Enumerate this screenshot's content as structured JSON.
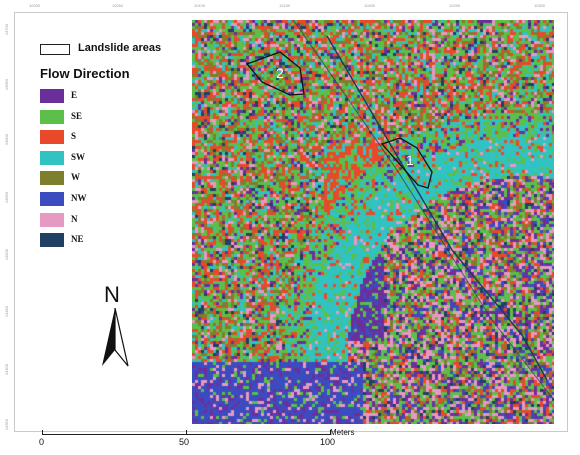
{
  "legend": {
    "landslide_label": "Landslide areas",
    "title": "Flow Direction",
    "items": [
      {
        "label": "E",
        "color": "#6b2f9c"
      },
      {
        "label": "SE",
        "color": "#5bbf4a"
      },
      {
        "label": "S",
        "color": "#e8492a"
      },
      {
        "label": "SW",
        "color": "#31c2c2"
      },
      {
        "label": "W",
        "color": "#7d7f2c"
      },
      {
        "label": "NW",
        "color": "#3b4cc0"
      },
      {
        "label": "N",
        "color": "#e79ac1"
      },
      {
        "label": "NE",
        "color": "#1f3f63"
      }
    ]
  },
  "north": {
    "letter": "N"
  },
  "scale": {
    "labels": [
      "0",
      "50",
      "100"
    ],
    "unit": "Meters"
  },
  "landslides": [
    {
      "label": "1"
    },
    {
      "label": "2"
    }
  ],
  "grid": {
    "top_ticks": [
      "10000",
      "10050",
      "10100",
      "10150",
      "10200",
      "10250",
      "10300"
    ],
    "left_ticks": [
      "13700",
      "13650",
      "13600",
      "13550",
      "13500",
      "13450",
      "13400",
      "13350"
    ]
  }
}
